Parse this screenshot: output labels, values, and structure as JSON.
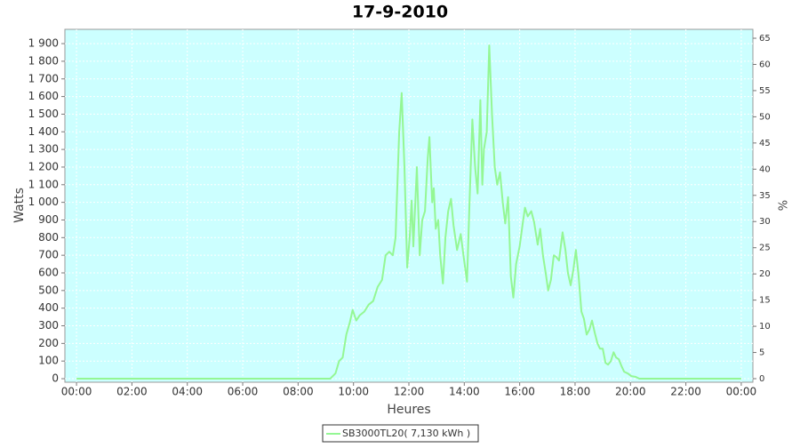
{
  "chart_data": {
    "type": "line",
    "title": "17-9-2010",
    "x_label": "Heures",
    "y_label": "Watts",
    "y2_label": "%",
    "xlim": [
      -0.42,
      24.42
    ],
    "ylim": [
      -20,
      1981
    ],
    "y2lim": [
      -0.68,
      66.7
    ],
    "xticks": [
      {
        "value": 0,
        "label": "00:00"
      },
      {
        "value": 2,
        "label": "02:00"
      },
      {
        "value": 4,
        "label": "04:00"
      },
      {
        "value": 6,
        "label": "06:00"
      },
      {
        "value": 8,
        "label": "08:00"
      },
      {
        "value": 10,
        "label": "10:00"
      },
      {
        "value": 12,
        "label": "12:00"
      },
      {
        "value": 14,
        "label": "14:00"
      },
      {
        "value": 16,
        "label": "16:00"
      },
      {
        "value": 18,
        "label": "18:00"
      },
      {
        "value": 20,
        "label": "20:00"
      },
      {
        "value": 22,
        "label": "22:00"
      },
      {
        "value": 24,
        "label": "00:00"
      }
    ],
    "yticks": [
      0,
      100,
      200,
      300,
      400,
      500,
      600,
      700,
      800,
      900,
      {
        "value": 1000,
        "label": "1 000"
      },
      {
        "value": 1100,
        "label": "1 100"
      },
      {
        "value": 1200,
        "label": "1 200"
      },
      {
        "value": 1300,
        "label": "1 300"
      },
      {
        "value": 1400,
        "label": "1 400"
      },
      {
        "value": 1500,
        "label": "1 500"
      },
      {
        "value": 1600,
        "label": "1 600"
      },
      {
        "value": 1700,
        "label": "1 700"
      },
      {
        "value": 1800,
        "label": "1 800"
      },
      {
        "value": 1900,
        "label": "1 900"
      }
    ],
    "y2ticks": [
      0,
      5,
      10,
      15,
      20,
      25,
      30,
      35,
      40,
      45,
      50,
      55,
      60,
      65
    ],
    "grid": true,
    "x": [
      0,
      9.16,
      9.35,
      9.48,
      9.61,
      9.74,
      9.87,
      9.97,
      10.1,
      10.23,
      10.39,
      10.55,
      10.71,
      10.87,
      11.03,
      11.16,
      11.29,
      11.42,
      11.52,
      11.65,
      11.74,
      11.84,
      11.94,
      12.03,
      12.1,
      12.16,
      12.29,
      12.39,
      12.48,
      12.58,
      12.68,
      12.74,
      12.84,
      12.9,
      12.97,
      13.06,
      13.13,
      13.23,
      13.32,
      13.42,
      13.52,
      13.61,
      13.74,
      13.87,
      13.97,
      14.1,
      14.19,
      14.29,
      14.39,
      14.48,
      14.58,
      14.65,
      14.71,
      14.81,
      14.9,
      15.0,
      15.1,
      15.19,
      15.29,
      15.39,
      15.48,
      15.58,
      15.68,
      15.77,
      15.87,
      16.0,
      16.1,
      16.19,
      16.29,
      16.42,
      16.52,
      16.65,
      16.74,
      16.84,
      16.94,
      17.03,
      17.13,
      17.23,
      17.32,
      17.42,
      17.55,
      17.65,
      17.74,
      17.84,
      17.94,
      18.03,
      18.13,
      18.23,
      18.32,
      18.42,
      18.52,
      18.61,
      18.71,
      18.81,
      18.9,
      19.0,
      19.1,
      19.19,
      19.29,
      19.39,
      19.48,
      19.58,
      19.68,
      19.77,
      19.9,
      20.03,
      20.19,
      20.32,
      24
    ],
    "series": [
      {
        "name": "SB3000TL20( 7,130 kWh )",
        "color": "#94f794",
        "values": [
          0,
          0,
          30,
          100,
          120,
          250,
          320,
          390,
          330,
          360,
          380,
          420,
          440,
          520,
          560,
          700,
          720,
          700,
          800,
          1400,
          1620,
          1200,
          630,
          800,
          1010,
          750,
          1200,
          700,
          900,
          950,
          1250,
          1370,
          1000,
          1080,
          850,
          900,
          700,
          540,
          800,
          950,
          1020,
          870,
          730,
          820,
          700,
          550,
          1000,
          1470,
          1200,
          1050,
          1580,
          1100,
          1300,
          1400,
          1890,
          1500,
          1200,
          1100,
          1170,
          1000,
          880,
          1030,
          580,
          460,
          650,
          750,
          870,
          970,
          920,
          950,
          890,
          760,
          850,
          700,
          600,
          500,
          560,
          700,
          690,
          670,
          830,
          730,
          600,
          530,
          620,
          730,
          580,
          380,
          340,
          250,
          280,
          330,
          260,
          200,
          170,
          170,
          90,
          80,
          100,
          150,
          120,
          110,
          70,
          40,
          30,
          15,
          10,
          0,
          0
        ]
      }
    ]
  }
}
